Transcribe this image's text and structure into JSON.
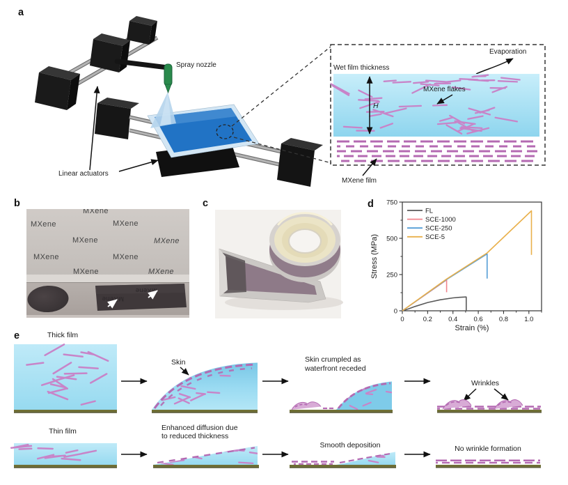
{
  "figure": {
    "panel_labels": {
      "a": "a",
      "b": "b",
      "c": "c",
      "d": "d",
      "e": "e"
    },
    "panel_a": {
      "spray_nozzle": "Spray nozzle",
      "linear_actuators": "Linear actuators",
      "inset": {
        "evaporation": "Evaporation",
        "wet_film_thickness": "Wet film thickness",
        "height_symbol": "H",
        "mxene_flakes": "MXene flakes",
        "mxene_film": "MXene film"
      }
    },
    "panel_b": {
      "paper_texts": [
        "MXene",
        "MXene",
        "MXene",
        "MXene",
        "MXene",
        "MXene",
        "MXene",
        "MXene",
        "MXene"
      ],
      "film_mirrored_texts": [
        "MXene",
        "MXene"
      ]
    },
    "panel_e": {
      "thick_row": {
        "title": "Thick film",
        "skin": "Skin",
        "stage3_line1": "Skin crumpled as",
        "stage3_line2": "waterfront receded",
        "stage4": "Wrinkles"
      },
      "thin_row": {
        "title": "Thin film",
        "stage2_line1": "Enhanced diffusion due",
        "stage2_line2": "to reduced thickness",
        "stage3": "Smooth deposition",
        "stage4": "No wrinkle formation"
      }
    }
  },
  "colors": {
    "flake": "#c884c8",
    "flake_dark": "#b46ab2",
    "mound_fill": "#d8abd6",
    "substrate": "#6f6f35",
    "film_blue": "#2173c5",
    "nozzle_green": "#2a8a4c",
    "liquid_top": "#bfeaf8",
    "liquid_bottom": "#97daf0"
  },
  "chart_data": {
    "type": "line",
    "title": "",
    "xlabel": "Strain (%)",
    "ylabel": "Stress (MPa)",
    "xlim": [
      0,
      1.1
    ],
    "ylim": [
      0,
      750
    ],
    "grid": false,
    "legend_position": "top-left",
    "xticks": {
      "values": [
        0,
        0.2,
        0.4,
        0.6,
        0.8,
        1.0
      ],
      "labels": [
        "0",
        "0.2",
        "0.4",
        "0.6",
        "0.8",
        "1.0"
      ],
      "minor_step": 0.1
    },
    "yticks": {
      "values": [
        0,
        250,
        500,
        750
      ],
      "labels": [
        "0",
        "250",
        "500",
        "750"
      ],
      "minor_step": 125
    },
    "series": [
      {
        "name": "FL",
        "color": "#595959",
        "points": [
          [
            0,
            0
          ],
          [
            0.05,
            14
          ],
          [
            0.1,
            30
          ],
          [
            0.2,
            57
          ],
          [
            0.3,
            76
          ],
          [
            0.4,
            89
          ],
          [
            0.45,
            93
          ],
          [
            0.5,
            95
          ],
          [
            0.505,
            95
          ],
          [
            0.505,
            0
          ]
        ]
      },
      {
        "name": "SCE-1000",
        "color": "#f2848d",
        "points": [
          [
            0,
            0
          ],
          [
            0.35,
            213
          ],
          [
            0.35,
            128
          ]
        ]
      },
      {
        "name": "SCE-250",
        "color": "#559dd6",
        "points": [
          [
            0,
            0
          ],
          [
            0.35,
            216
          ],
          [
            0.67,
            393
          ],
          [
            0.67,
            222
          ]
        ]
      },
      {
        "name": "SCE-5",
        "color": "#e9b04b",
        "points": [
          [
            0,
            0
          ],
          [
            0.35,
            219
          ],
          [
            0.67,
            399
          ],
          [
            1.02,
            690
          ],
          [
            1.02,
            386
          ]
        ]
      }
    ]
  }
}
